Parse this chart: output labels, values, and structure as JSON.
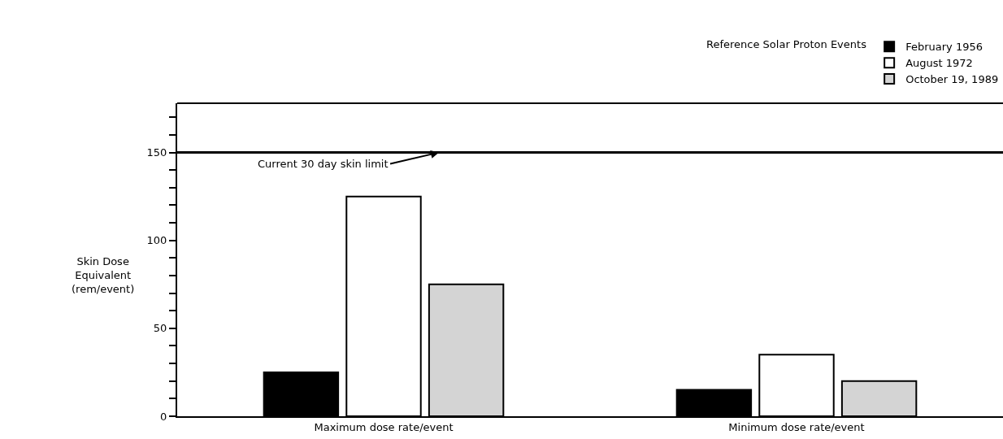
{
  "chart_data": {
    "type": "bar",
    "ylabel": "Skin Dose\nEquivalent\n(rem/event)",
    "legend_title": "Reference Solar Proton Events",
    "legend": "top right",
    "categories": [
      "Maximum dose rate/event",
      "Minimum dose rate/event"
    ],
    "series": [
      {
        "name": "February 1956",
        "color": "#000000",
        "values": [
          25,
          15
        ]
      },
      {
        "name": "August 1972",
        "color": "#ffffff",
        "values": [
          125,
          35
        ]
      },
      {
        "name": "October 19, 1989",
        "color": "#d4d4d4",
        "values": [
          75,
          20
        ]
      }
    ],
    "ylim": [
      0,
      178
    ],
    "yticks": [
      0,
      {
        "value": 10,
        "label": null
      },
      {
        "value": 20,
        "label": null
      },
      {
        "value": 30,
        "label": null
      },
      {
        "value": 40,
        "label": null
      },
      50,
      {
        "value": 60,
        "label": null
      },
      {
        "value": 70,
        "label": null
      },
      {
        "value": 80,
        "label": null
      },
      {
        "value": 90,
        "label": null
      },
      100,
      {
        "value": 110,
        "label": null
      },
      {
        "value": 120,
        "label": null
      },
      {
        "value": 130,
        "label": null
      },
      {
        "value": 140,
        "label": null
      },
      150,
      {
        "value": 160,
        "label": null
      },
      {
        "value": 170,
        "label": null
      }
    ],
    "ref_lines": [
      {
        "axis": "y",
        "value": 150,
        "label": "Current 30 day skin limit",
        "color": "#000000"
      }
    ]
  }
}
